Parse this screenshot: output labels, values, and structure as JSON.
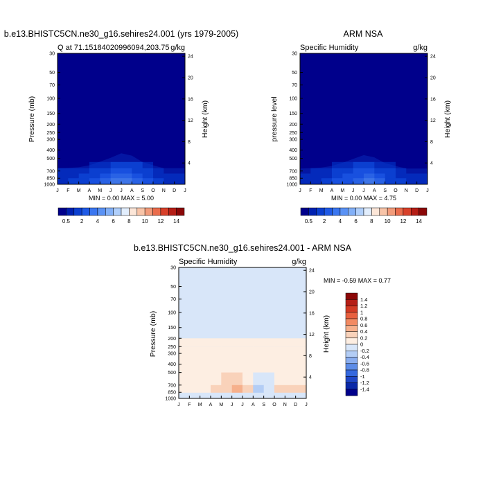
{
  "chart_data": [
    {
      "type": "heatmap",
      "title": "b.e13.BHISTC5CN.ne30_g16.sehires24.001 (yrs 1979-2005)",
      "subtitle_left": "Q at 71.15184020996094,203.75",
      "subtitle_right": "g/kg",
      "ylabel": "Pressure (mb)",
      "ylabel_right": "Height (km)",
      "x_ticks": [
        "J",
        "F",
        "M",
        "A",
        "M",
        "J",
        "J",
        "A",
        "S",
        "O",
        "N",
        "D",
        "J"
      ],
      "pressure_ticks": [
        30,
        50,
        70,
        100,
        150,
        200,
        250,
        300,
        400,
        500,
        700,
        850,
        1000
      ],
      "height_ticks": [
        4,
        8,
        12,
        16,
        20,
        24
      ],
      "stats_text": "MIN =   0.00 MAX =   5.00",
      "colorbar_ticks": [
        "0.5",
        "2",
        "4",
        "6",
        "8",
        "10",
        "12",
        "14"
      ],
      "values_gkg": [
        [
          0.3,
          0.3,
          0.4,
          0.5,
          0.9,
          1.1,
          1.5,
          1.3,
          0.8,
          0.5,
          0.3,
          0.3,
          0.3
        ],
        [
          0.5,
          0.6,
          0.7,
          1.0,
          1.5,
          2.2,
          2.7,
          2.4,
          1.5,
          1.0,
          0.5,
          0.5,
          0.5
        ],
        [
          0.7,
          0.8,
          0.9,
          1.4,
          2.2,
          3.0,
          3.6,
          3.1,
          2.1,
          1.3,
          0.7,
          0.7,
          0.7
        ],
        [
          0.9,
          1.0,
          1.2,
          1.8,
          2.8,
          3.8,
          4.8,
          4.3,
          2.7,
          1.8,
          0.9,
          0.9,
          0.9
        ]
      ]
    },
    {
      "type": "heatmap",
      "title": "ARM NSA",
      "subtitle_left": "Specific Humidity",
      "subtitle_right": "g/kg",
      "ylabel": "pressure level",
      "ylabel_right": "Height (km)",
      "x_ticks": [
        "J",
        "F",
        "M",
        "A",
        "M",
        "J",
        "J",
        "A",
        "S",
        "O",
        "N",
        "D",
        "J"
      ],
      "pressure_ticks": [
        30,
        50,
        70,
        100,
        150,
        200,
        250,
        300,
        400,
        500,
        700,
        850,
        1000
      ],
      "height_ticks": [
        4,
        8,
        12,
        16,
        20,
        24
      ],
      "stats_text": "MIN =   0.00 MAX =   4.75",
      "colorbar_ticks": [
        "0.5",
        "2",
        "4",
        "6",
        "8",
        "10",
        "12",
        "14"
      ],
      "values_gkg": [
        [
          0.3,
          0.3,
          0.3,
          0.4,
          0.7,
          1.0,
          1.3,
          1.1,
          0.7,
          0.4,
          0.3,
          0.3,
          0.3
        ],
        [
          0.5,
          0.5,
          0.6,
          0.8,
          1.3,
          1.9,
          2.4,
          2.1,
          1.3,
          0.8,
          0.5,
          0.5,
          0.5
        ],
        [
          0.6,
          0.7,
          0.8,
          1.2,
          1.9,
          2.7,
          3.3,
          2.9,
          1.8,
          1.1,
          0.6,
          0.6,
          0.6
        ],
        [
          0.8,
          0.9,
          1.1,
          1.6,
          2.5,
          3.5,
          4.4,
          3.9,
          2.4,
          1.6,
          0.8,
          0.8,
          0.8
        ]
      ]
    },
    {
      "type": "heatmap",
      "title": "b.e13.BHISTC5CN.ne30_g16.sehires24.001 - ARM NSA",
      "subtitle_left": "Specific Humidity",
      "subtitle_right": "g/kg",
      "ylabel": "Pressure (mb)",
      "ylabel_right": "Height (km)",
      "x_ticks": [
        "J",
        "F",
        "M",
        "A",
        "M",
        "J",
        "J",
        "A",
        "S",
        "O",
        "N",
        "D",
        "J"
      ],
      "pressure_ticks": [
        30,
        50,
        70,
        100,
        150,
        200,
        250,
        300,
        400,
        500,
        700,
        850,
        1000
      ],
      "height_ticks": [
        4,
        8,
        12,
        16,
        20,
        24
      ],
      "stats_text": "MIN =  -0.59 MAX =   0.77",
      "colorbar_ticks": [
        "1.4",
        "1.2",
        "1",
        "0.8",
        "0.6",
        "0.4",
        "0.2",
        "0",
        "-0.2",
        "-0.4",
        "-0.6",
        "-0.8",
        "-1",
        "-1.2",
        "-1.4"
      ],
      "values_gkg": [
        [
          0.02,
          0.05,
          0.05,
          0.08,
          0.1,
          0.08,
          0.1,
          0.1,
          0.04,
          0.06,
          0.05,
          0.08,
          0.04
        ],
        [
          0.03,
          0.06,
          0.12,
          0.1,
          0.18,
          0.22,
          0.32,
          -0.1,
          -0.28,
          -0.12,
          0.16,
          0.14,
          0.06
        ],
        [
          0.05,
          0.1,
          0.2,
          0.15,
          0.3,
          0.25,
          0.77,
          -0.05,
          -0.59,
          0.2,
          0.25,
          0.3,
          0.1
        ]
      ]
    }
  ]
}
